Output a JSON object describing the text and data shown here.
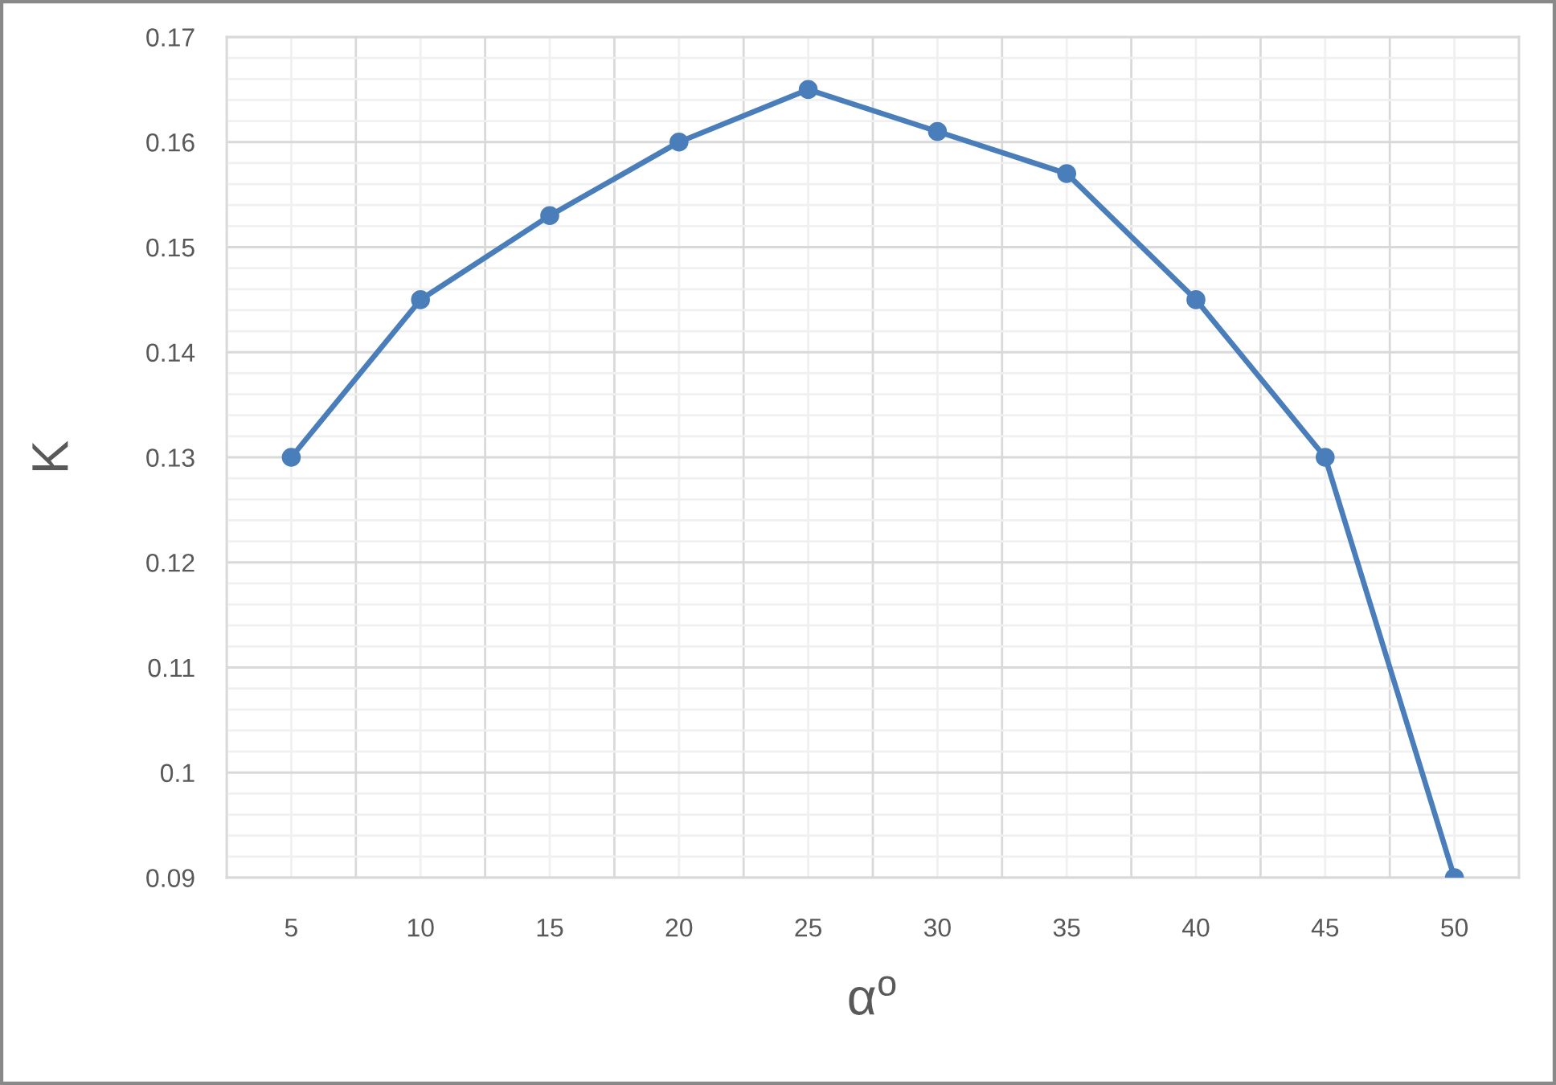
{
  "chart_data": {
    "type": "line",
    "xlabel": "α$^{o}$",
    "ylabel": "K",
    "categories": [
      "5",
      "10",
      "15",
      "20",
      "25",
      "30",
      "35",
      "40",
      "45",
      "50"
    ],
    "series": [
      {
        "color": "#4a7ebb",
        "values": [
          0.13,
          0.145,
          0.153,
          0.16,
          0.165,
          0.161,
          0.157,
          0.145,
          0.13,
          0.09
        ]
      }
    ],
    "ylim": [
      0.09,
      0.17
    ],
    "yticks": [
      0.09,
      0.1,
      0.11,
      0.12,
      0.13,
      0.14,
      0.15,
      0.16,
      0.17
    ],
    "grid": true,
    "marker": "circle",
    "line_style": "solid"
  }
}
